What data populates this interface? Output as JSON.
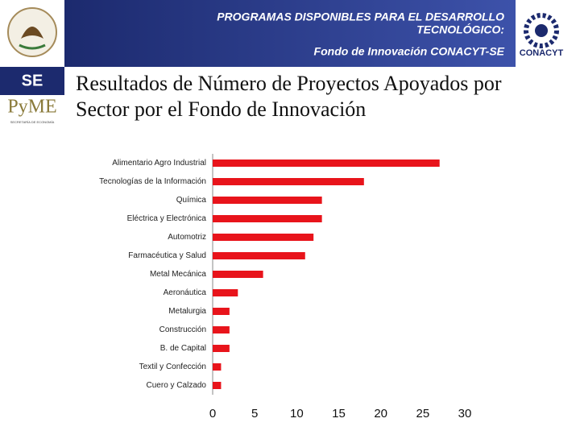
{
  "header": {
    "program_line1": "PROGRAMAS DISPONIBLES PARA EL DESARROLLO",
    "program_line2": "TECNOLÓGICO:",
    "fund": "Fondo de Innovación CONACYT-SE",
    "left_logo": "SE",
    "pyme_logo": "PyME",
    "pyme_caption": "SECRETARÍA DE ECONOMÍA",
    "right_logo": "CONACYT"
  },
  "chart_data": {
    "type": "bar",
    "orientation": "horizontal",
    "title": "Resultados de Número de Proyectos Apoyados por Sector por el Fondo de Innovación",
    "categories": [
      "Alimentario Agro Industrial",
      "Tecnologías de la Información",
      "Química",
      "Eléctrica y Electrónica",
      "Automotriz",
      "Farmacéutica y Salud",
      "Metal Mecánica",
      "Aeronáutica",
      "Metalurgia",
      "Construcción",
      "B. de Capital",
      "Textil y Confección",
      "Cuero y Calzado"
    ],
    "values": [
      27,
      18,
      13,
      13,
      12,
      11,
      6,
      3,
      2,
      2,
      2,
      1,
      1
    ],
    "color": "#e8141b",
    "xlim": [
      0,
      30
    ],
    "xticks": [
      0,
      5,
      10,
      15,
      20,
      25,
      30
    ],
    "grid": false
  }
}
